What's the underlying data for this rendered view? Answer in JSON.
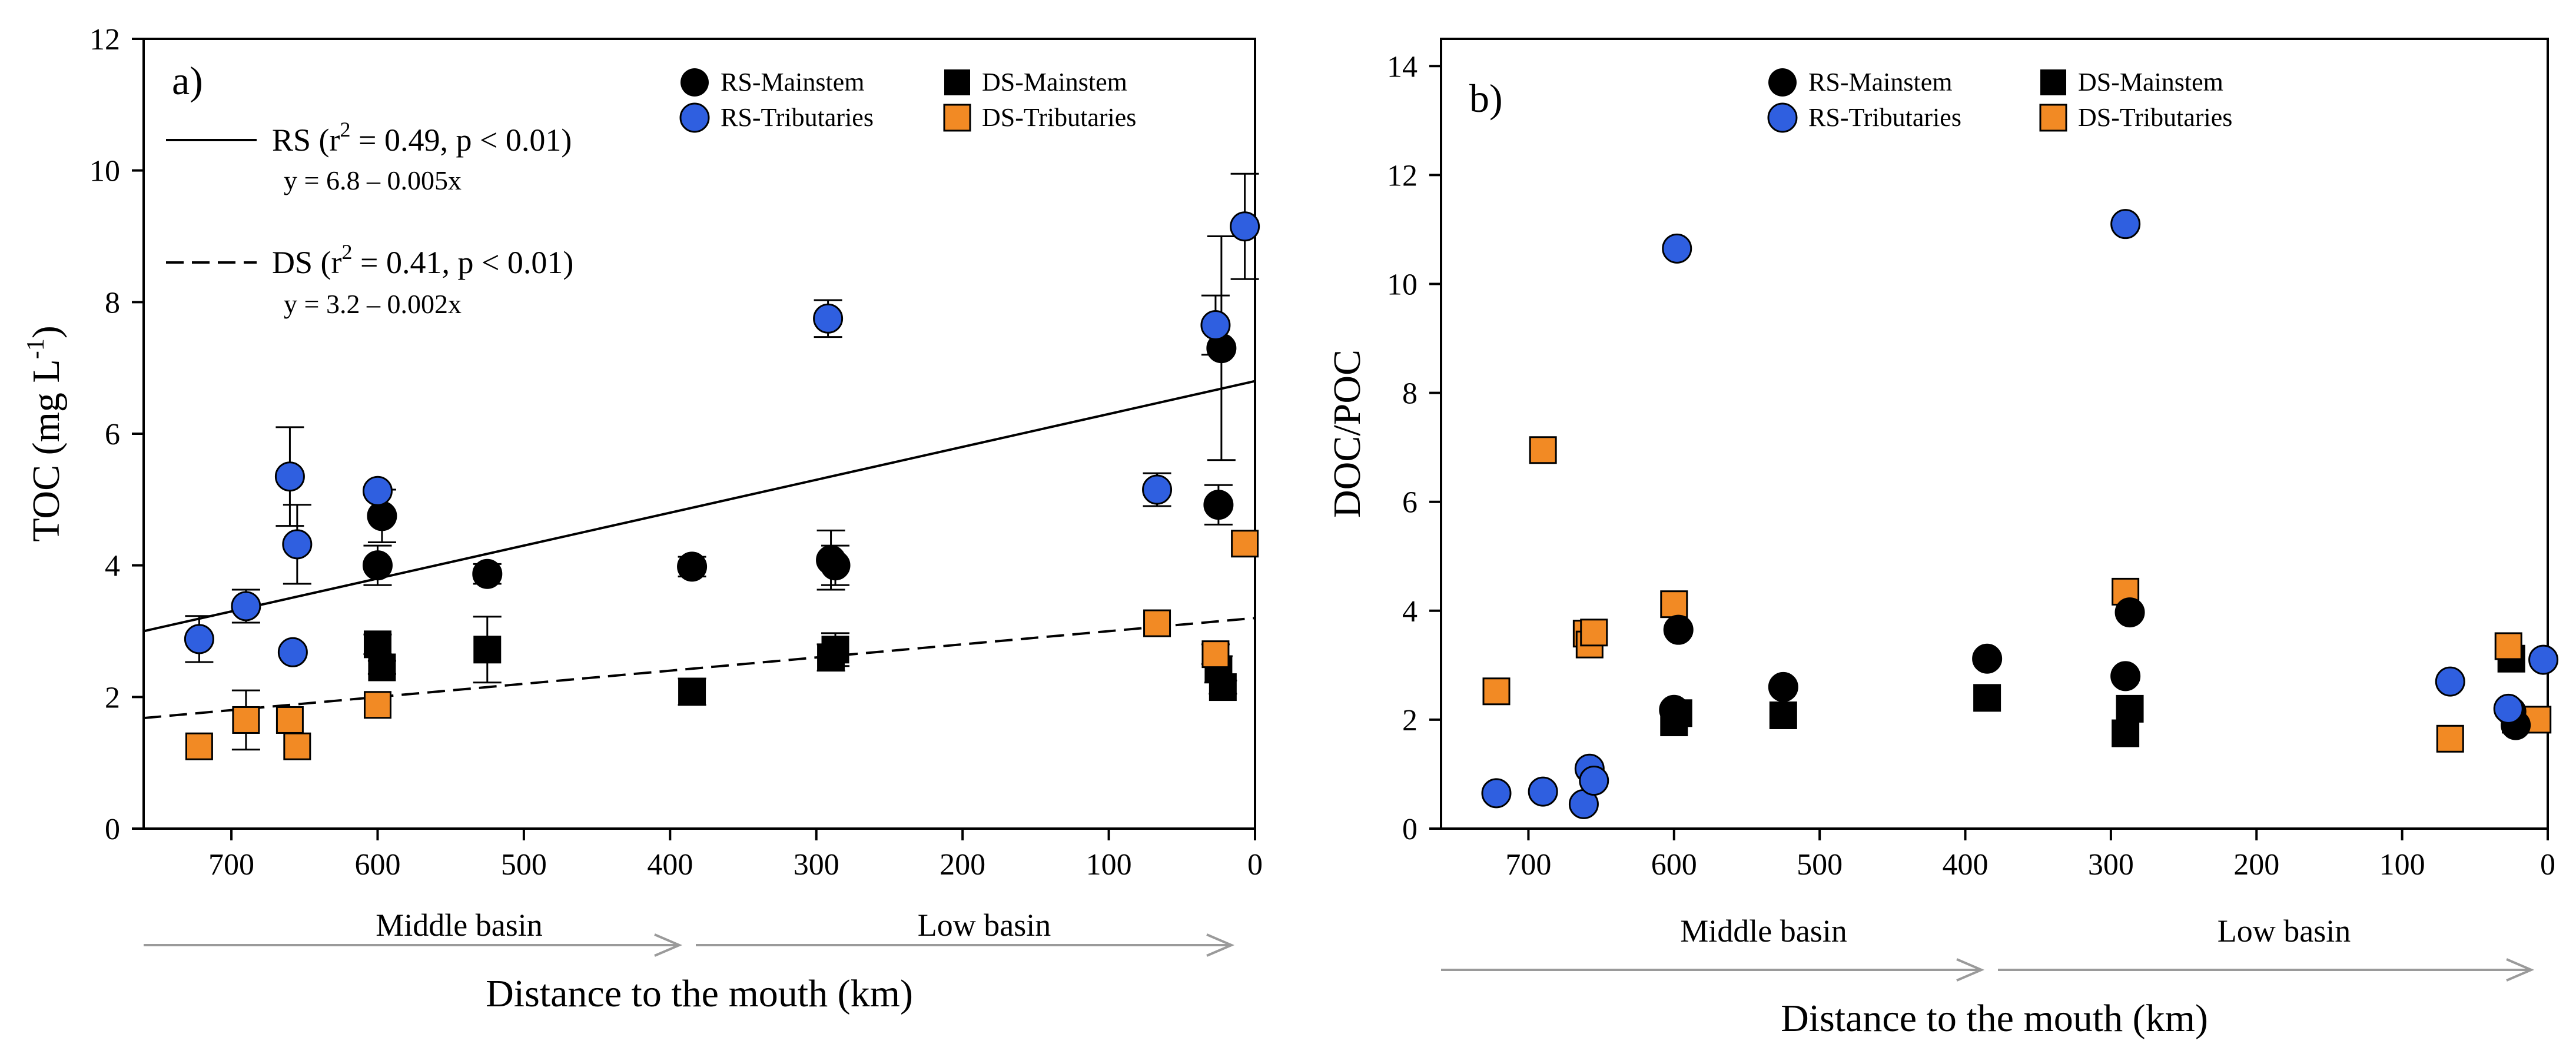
{
  "chart_data": [
    {
      "type": "scatter",
      "panel_label": "a)",
      "ylabel_main": "TOC",
      "ylabel_unit_pre": "(mg L",
      "ylabel_unit_sup": "-1",
      "ylabel_unit_post": ")",
      "xlabel": "Distance to the mouth  (km)",
      "xlim": [
        760,
        0
      ],
      "ylim": [
        0,
        12
      ],
      "xticks": [
        700,
        600,
        500,
        400,
        300,
        200,
        100,
        0
      ],
      "yticks": [
        0,
        2,
        4,
        6,
        8,
        10,
        12
      ],
      "legend": [
        {
          "name": "RS-Mainstem",
          "marker": "circle",
          "color": "#000000"
        },
        {
          "name": "DS-Mainstem",
          "marker": "square",
          "color": "#000000"
        },
        {
          "name": "RS-Tributaries",
          "marker": "circle",
          "color": "#2f5fe0"
        },
        {
          "name": "DS-Tributaries",
          "marker": "square",
          "color": "#f28a24"
        }
      ],
      "regressions": [
        {
          "name": "RS",
          "style": "solid",
          "intercept": 6.8,
          "slope": -0.005,
          "label_pre": "RS (r",
          "label_sup": "2",
          "label_post": " = 0.49, p < 0.01)",
          "equation": "y = 6.8 – 0.005x"
        },
        {
          "name": "DS",
          "style": "dashed",
          "intercept": 3.2,
          "slope": -0.002,
          "label_pre": "DS (r",
          "label_sup": "2",
          "label_post": " = 0.41, p < 0.01)",
          "equation": "y = 3.2 – 0.002x"
        }
      ],
      "series": [
        {
          "name": "RS-Mainstem",
          "points": [
            {
              "x": 600,
              "y": 4.0,
              "err": 0.3
            },
            {
              "x": 597,
              "y": 4.75,
              "err": 0.4
            },
            {
              "x": 525,
              "y": 3.87,
              "err": 0.15
            },
            {
              "x": 385,
              "y": 3.98,
              "err": 0.15
            },
            {
              "x": 290,
              "y": 4.08,
              "err": 0.45
            },
            {
              "x": 287,
              "y": 4.0,
              "err": 0.3
            },
            {
              "x": 25,
              "y": 4.92,
              "err": 0.3
            },
            {
              "x": 23,
              "y": 7.3,
              "err": 1.7
            }
          ]
        },
        {
          "name": "DS-Mainstem",
          "points": [
            {
              "x": 600,
              "y": 2.8,
              "err": 0.15
            },
            {
              "x": 597,
              "y": 2.45,
              "err": 0.1
            },
            {
              "x": 525,
              "y": 2.72,
              "err": 0.5
            },
            {
              "x": 385,
              "y": 2.08,
              "err": 0.2
            },
            {
              "x": 290,
              "y": 2.6,
              "err": 0.2
            },
            {
              "x": 287,
              "y": 2.72,
              "err": 0.25
            },
            {
              "x": 25,
              "y": 2.42,
              "err": 0.2
            },
            {
              "x": 22,
              "y": 2.15,
              "err": 0.1
            }
          ]
        },
        {
          "name": "RS-Tributaries",
          "points": [
            {
              "x": 722,
              "y": 2.88,
              "err": 0.35
            },
            {
              "x": 690,
              "y": 3.38,
              "err": 0.25
            },
            {
              "x": 660,
              "y": 5.35,
              "err": 0.75
            },
            {
              "x": 658,
              "y": 2.68,
              "err": 0
            },
            {
              "x": 655,
              "y": 4.32,
              "err": 0.6
            },
            {
              "x": 600,
              "y": 5.13,
              "err": 0
            },
            {
              "x": 292,
              "y": 7.75,
              "err": 0.28
            },
            {
              "x": 67,
              "y": 5.15,
              "err": 0.25
            },
            {
              "x": 27,
              "y": 7.65,
              "err": 0.45
            },
            {
              "x": 7,
              "y": 9.15,
              "err": 0.8
            }
          ]
        },
        {
          "name": "DS-Tributaries",
          "points": [
            {
              "x": 722,
              "y": 1.25,
              "err": 0
            },
            {
              "x": 690,
              "y": 1.65,
              "err": 0.45
            },
            {
              "x": 660,
              "y": 1.65,
              "err": 0
            },
            {
              "x": 655,
              "y": 1.25,
              "err": 0
            },
            {
              "x": 600,
              "y": 1.88,
              "err": 0
            },
            {
              "x": 67,
              "y": 3.12,
              "err": 0
            },
            {
              "x": 27,
              "y": 2.65,
              "err": 0.15
            },
            {
              "x": 7,
              "y": 4.33,
              "err": 0
            }
          ]
        }
      ]
    },
    {
      "type": "scatter",
      "panel_label": "b)",
      "ylabel": "DOC/POC",
      "xlabel": "Distance to the mouth  (km)",
      "xlim": [
        760,
        0
      ],
      "ylim": [
        0,
        14.5
      ],
      "xticks": [
        700,
        600,
        500,
        400,
        300,
        200,
        100,
        0
      ],
      "yticks": [
        0,
        2,
        4,
        6,
        8,
        10,
        12,
        14
      ],
      "legend": [
        {
          "name": "RS-Mainstem",
          "marker": "circle",
          "color": "#000000"
        },
        {
          "name": "DS-Mainstem",
          "marker": "square",
          "color": "#000000"
        },
        {
          "name": "RS-Tributaries",
          "marker": "circle",
          "color": "#2f5fe0"
        },
        {
          "name": "DS-Tributaries",
          "marker": "square",
          "color": "#f28a24"
        }
      ],
      "series": [
        {
          "name": "RS-Mainstem",
          "points": [
            {
              "x": 600,
              "y": 2.18
            },
            {
              "x": 597,
              "y": 3.65
            },
            {
              "x": 525,
              "y": 2.6
            },
            {
              "x": 385,
              "y": 3.12
            },
            {
              "x": 290,
              "y": 2.8
            },
            {
              "x": 287,
              "y": 3.97
            },
            {
              "x": 25,
              "y": 2.15
            },
            {
              "x": 22,
              "y": 1.9
            }
          ]
        },
        {
          "name": "DS-Mainstem",
          "points": [
            {
              "x": 600,
              "y": 1.95
            },
            {
              "x": 597,
              "y": 2.12
            },
            {
              "x": 525,
              "y": 2.08
            },
            {
              "x": 385,
              "y": 2.4
            },
            {
              "x": 290,
              "y": 1.75
            },
            {
              "x": 287,
              "y": 2.2
            },
            {
              "x": 25,
              "y": 3.12
            },
            {
              "x": 22,
              "y": 2.0
            }
          ]
        },
        {
          "name": "RS-Tributaries",
          "points": [
            {
              "x": 722,
              "y": 0.65
            },
            {
              "x": 690,
              "y": 0.68
            },
            {
              "x": 662,
              "y": 0.45
            },
            {
              "x": 658,
              "y": 1.1
            },
            {
              "x": 655,
              "y": 0.88
            },
            {
              "x": 598,
              "y": 10.65
            },
            {
              "x": 290,
              "y": 11.1
            },
            {
              "x": 67,
              "y": 2.7
            },
            {
              "x": 27,
              "y": 2.2
            },
            {
              "x": 3,
              "y": 3.1
            }
          ]
        },
        {
          "name": "DS-Tributaries",
          "points": [
            {
              "x": 722,
              "y": 2.52
            },
            {
              "x": 690,
              "y": 6.95
            },
            {
              "x": 660,
              "y": 3.58
            },
            {
              "x": 658,
              "y": 3.38
            },
            {
              "x": 655,
              "y": 3.6
            },
            {
              "x": 600,
              "y": 4.12
            },
            {
              "x": 290,
              "y": 4.35
            },
            {
              "x": 67,
              "y": 1.65
            },
            {
              "x": 27,
              "y": 3.35
            },
            {
              "x": 7,
              "y": 2.0
            }
          ]
        }
      ]
    }
  ],
  "basins": {
    "middle": "Middle basin",
    "low": "Low basin"
  }
}
